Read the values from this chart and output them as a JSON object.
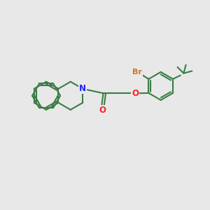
{
  "background_color": "#e8e8e8",
  "bond_color": "#3a7d44",
  "bond_width": 1.5,
  "N_color": "#2020ff",
  "O_color": "#ff2020",
  "Br_color": "#cc7722",
  "text_fontsize": 8.5,
  "fig_width": 3.0,
  "fig_height": 3.0,
  "xlim": [
    0,
    10
  ],
  "ylim": [
    0,
    10
  ]
}
